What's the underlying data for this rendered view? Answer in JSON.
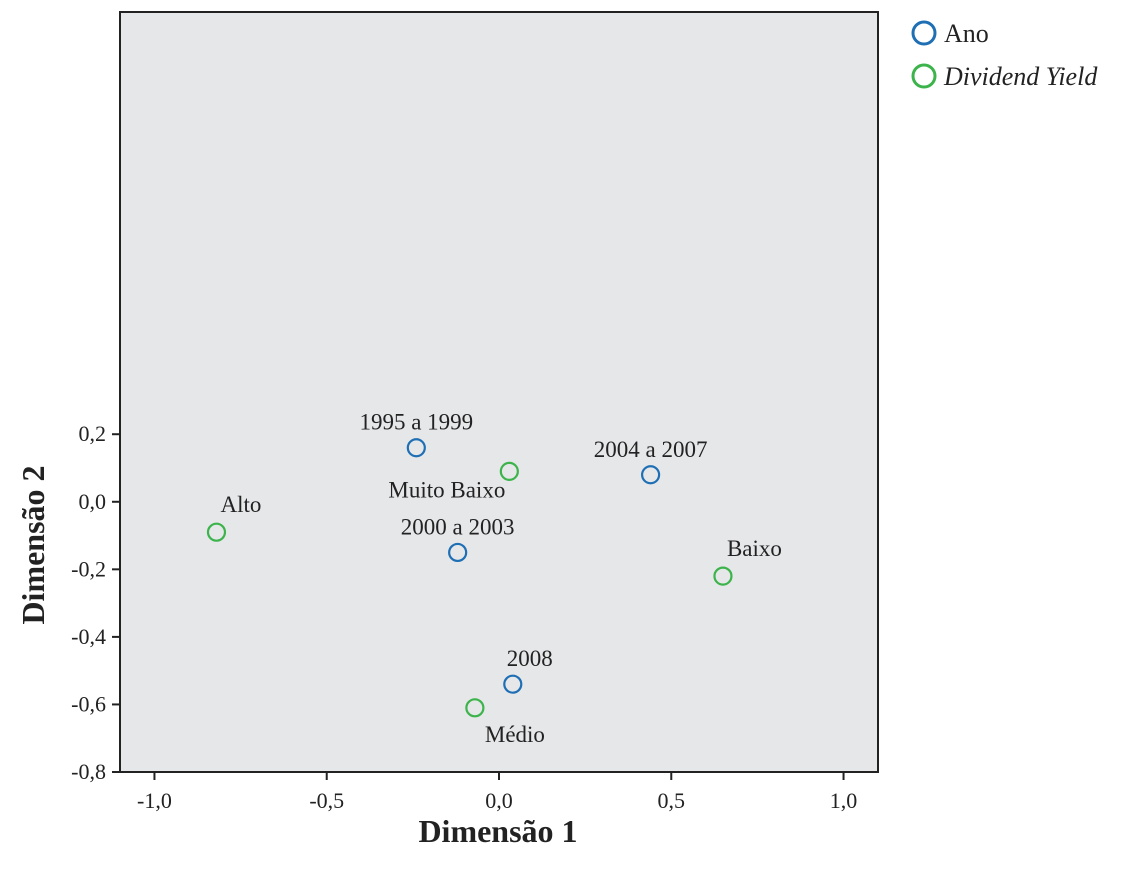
{
  "chart_data": {
    "type": "scatter",
    "title": "",
    "xlabel": "Dimensão 1",
    "ylabel": "Dimensão 2",
    "xlim": [
      -1.1,
      1.1
    ],
    "ylim": [
      -0.8,
      1.45
    ],
    "xticks": [
      {
        "value": -1.0,
        "label": "-1,0"
      },
      {
        "value": -0.5,
        "label": "-0,5"
      },
      {
        "value": 0.0,
        "label": "0,0"
      },
      {
        "value": 0.5,
        "label": "0,5"
      },
      {
        "value": 1.0,
        "label": "1,0"
      }
    ],
    "yticks": [
      {
        "value": 0.2,
        "label": "0,2"
      },
      {
        "value": 0.0,
        "label": "0,0"
      },
      {
        "value": -0.2,
        "label": "-0,2"
      },
      {
        "value": -0.4,
        "label": "-0,4"
      },
      {
        "value": -0.6,
        "label": "-0,6"
      },
      {
        "value": -0.8,
        "label": "-0,8"
      }
    ],
    "grid": false,
    "legend_position": "top-right outside",
    "series": [
      {
        "name": "Ano",
        "italic": false,
        "color": "#1f6fb5",
        "points": [
          {
            "label": "1995 a 1999",
            "x": -0.24,
            "y": 0.16,
            "label_pos": "above"
          },
          {
            "label": "2000 a 2003",
            "x": -0.12,
            "y": -0.15,
            "label_pos": "above"
          },
          {
            "label": "2004 a 2007",
            "x": 0.44,
            "y": 0.08,
            "label_pos": "above"
          },
          {
            "label": "2008",
            "x": 0.04,
            "y": -0.54,
            "label_pos": "above"
          }
        ]
      },
      {
        "name": "Dividend Yield",
        "italic": true,
        "color": "#3cb44b",
        "points": [
          {
            "label": "Muito Baixo",
            "x": 0.03,
            "y": 0.09,
            "label_pos": "below-left"
          },
          {
            "label": "Alto",
            "x": -0.82,
            "y": -0.09,
            "label_pos": "above"
          },
          {
            "label": "Baixo",
            "x": 0.65,
            "y": -0.22,
            "label_pos": "above"
          },
          {
            "label": "Médio",
            "x": -0.07,
            "y": -0.61,
            "label_pos": "below"
          }
        ]
      }
    ]
  },
  "colors": {
    "plot_background": "#e6e7e9",
    "axis": "#222222"
  }
}
